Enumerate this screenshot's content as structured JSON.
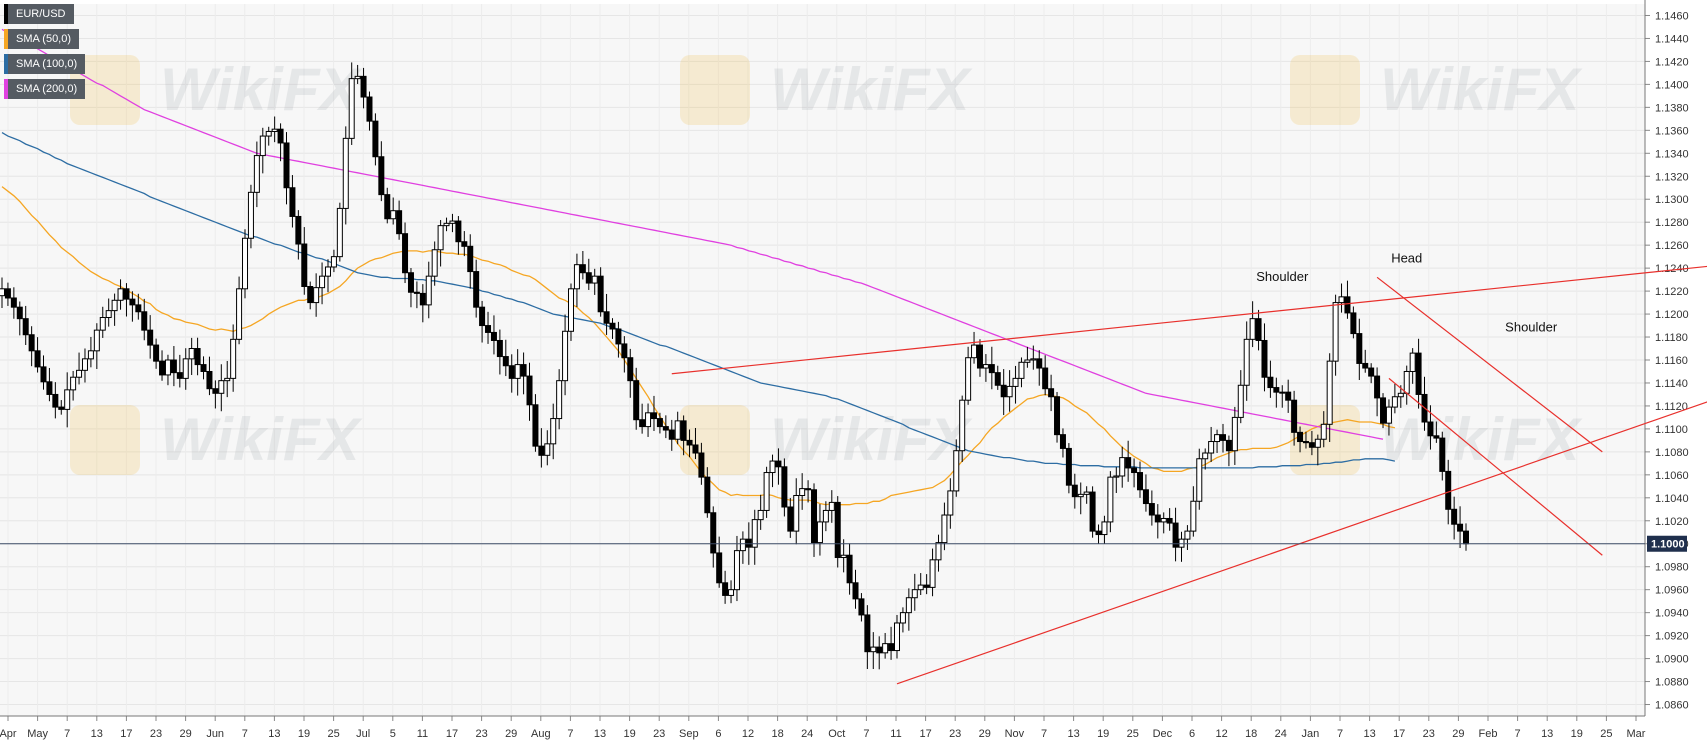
{
  "legend": [
    {
      "label": "EUR/USD",
      "color": "#000000"
    },
    {
      "label": "SMA (50,0)",
      "color": "#f5a623"
    },
    {
      "label": "SMA (100,0)",
      "color": "#2d6da3"
    },
    {
      "label": "SMA (200,0)",
      "color": "#e040e0"
    }
  ],
  "watermark": "WikiFX",
  "chart_data": {
    "type": "line",
    "instrument": "EUR/USD",
    "current_price": 1.1,
    "current_price_label": "1.1000",
    "y_axis": {
      "range": [
        1.085,
        1.147
      ],
      "ticks": [
        "1.1460",
        "1.1440",
        "1.1420",
        "1.1400",
        "1.1380",
        "1.1360",
        "1.1340",
        "1.1320",
        "1.1300",
        "1.1280",
        "1.1260",
        "1.1240",
        "1.1220",
        "1.1200",
        "1.1180",
        "1.1160",
        "1.1140",
        "1.1120",
        "1.1100",
        "1.1080",
        "1.1060",
        "1.1040",
        "1.1020",
        "1.1000",
        "1.0980",
        "1.0960",
        "1.0940",
        "1.0920",
        "1.0900",
        "1.0880",
        "1.0860"
      ]
    },
    "x_axis": {
      "ticks": [
        "Apr",
        "May",
        "7",
        "13",
        "17",
        "23",
        "29",
        "Jun",
        "7",
        "13",
        "19",
        "25",
        "Jul",
        "5",
        "11",
        "17",
        "23",
        "29",
        "Aug",
        "7",
        "13",
        "19",
        "23",
        "Sep",
        "6",
        "12",
        "18",
        "24",
        "Oct",
        "7",
        "11",
        "17",
        "23",
        "29",
        "Nov",
        "7",
        "13",
        "19",
        "25",
        "Dec",
        "6",
        "12",
        "18",
        "24",
        "Jan",
        "7",
        "13",
        "17",
        "23",
        "29",
        "Feb",
        "7",
        "13",
        "19",
        "25",
        "Mar"
      ]
    },
    "series": [
      {
        "name": "EUR/USD",
        "style": "candlestick",
        "color": "#000000",
        "close": [
          1.1222,
          1.1214,
          1.1206,
          1.1196,
          1.1182,
          1.1168,
          1.1154,
          1.1141,
          1.113,
          1.1119,
          1.1117,
          1.1134,
          1.1145,
          1.1151,
          1.1161,
          1.1168,
          1.1186,
          1.1197,
          1.1203,
          1.1212,
          1.1222,
          1.1213,
          1.1208,
          1.1202,
          1.1186,
          1.1173,
          1.1159,
          1.1147,
          1.116,
          1.1149,
          1.1144,
          1.1161,
          1.117,
          1.1156,
          1.115,
          1.1135,
          1.1131,
          1.1142,
          1.1144,
          1.1178,
          1.1222,
          1.1266,
          1.1306,
          1.1338,
          1.1355,
          1.1359,
          1.1361,
          1.1349,
          1.131,
          1.1285,
          1.1261,
          1.1224,
          1.121,
          1.1223,
          1.1233,
          1.1241,
          1.125,
          1.1292,
          1.1353,
          1.1405,
          1.1407,
          1.1389,
          1.1368,
          1.1337,
          1.1304,
          1.1283,
          1.129,
          1.127,
          1.1236,
          1.1219,
          1.1218,
          1.1208,
          1.1233,
          1.1256,
          1.1277,
          1.1279,
          1.1281,
          1.1263,
          1.1259,
          1.1237,
          1.1206,
          1.119,
          1.1184,
          1.1177,
          1.1163,
          1.1155,
          1.1144,
          1.1156,
          1.1146,
          1.1121,
          1.1085,
          1.1077,
          1.1087,
          1.1109,
          1.1142,
          1.1185,
          1.1222,
          1.1243,
          1.1236,
          1.1227,
          1.1233,
          1.1202,
          1.1192,
          1.1187,
          1.1174,
          1.1162,
          1.1142,
          1.1108,
          1.1102,
          1.1114,
          1.1109,
          1.1102,
          1.1099,
          1.1091,
          1.1107,
          1.109,
          1.1086,
          1.1079,
          1.1058,
          1.1027,
          1.0992,
          1.0966,
          1.0955,
          1.096,
          1.0994,
          1.1004,
          1.0997,
          1.1021,
          1.1029,
          1.1062,
          1.1072,
          1.1067,
          1.1032,
          1.1011,
          1.1042,
          1.1048,
          1.1047,
          1.1001,
          1.1019,
          1.1029,
          1.1036,
          1.0988,
          1.099,
          1.0966,
          1.0952,
          1.0938,
          1.0906,
          1.091,
          1.0905,
          1.0913,
          1.0907,
          1.0931,
          1.094,
          1.0953,
          1.096,
          1.0964,
          1.0962,
          1.0986,
          1.1001,
          1.1025,
          1.1046,
          1.1081,
          1.1125,
          1.1162,
          1.1173,
          1.1153,
          1.1156,
          1.1149,
          1.1138,
          1.1128,
          1.1137,
          1.1144,
          1.1158,
          1.116,
          1.1161,
          1.1153,
          1.1135,
          1.1128,
          1.1095,
          1.1083,
          1.1051,
          1.1041,
          1.1043,
          1.1045,
          1.1011,
          1.1008,
          1.1019,
          1.1058,
          1.1059,
          1.1075,
          1.1066,
          1.1062,
          1.1047,
          1.1035,
          1.1025,
          1.1019,
          1.1022,
          1.1018,
          1.0997,
          1.1004,
          1.1011,
          1.1037,
          1.1074,
          1.1079,
          1.1089,
          1.1095,
          1.109,
          1.1081,
          1.111,
          1.1138,
          1.1178,
          1.1196,
          1.1177,
          1.1145,
          1.1136,
          1.1132,
          1.1132,
          1.1125,
          1.1097,
          1.1089,
          1.1088,
          1.1084,
          1.1091,
          1.1104,
          1.1159,
          1.121,
          1.1215,
          1.1201,
          1.1183,
          1.1157,
          1.1153,
          1.1146,
          1.1127,
          1.1105,
          1.1119,
          1.1128,
          1.1131,
          1.115,
          1.1166,
          1.113,
          1.1106,
          1.1094,
          1.1092,
          1.1063,
          1.103,
          1.1017,
          1.1011,
          1.1
        ]
      },
      {
        "name": "SMA (50,0)",
        "color": "#f5a623",
        "values": [
          1.1311,
          1.1307,
          1.1303,
          1.1298,
          1.1292,
          1.1286,
          1.1281,
          1.1275,
          1.1269,
          1.1264,
          1.1258,
          1.1254,
          1.125,
          1.1245,
          1.1241,
          1.1237,
          1.1234,
          1.1231,
          1.1229,
          1.1226,
          1.1224,
          1.1221,
          1.1218,
          1.1215,
          1.1211,
          1.1209,
          1.1204,
          1.1201,
          1.1199,
          1.1196,
          1.1195,
          1.1193,
          1.1192,
          1.1191,
          1.1189,
          1.1187,
          1.1186,
          1.1187,
          1.1186,
          1.1185,
          1.1187,
          1.1188,
          1.119,
          1.1193,
          1.1196,
          1.12,
          1.1203,
          1.1206,
          1.1208,
          1.121,
          1.1212,
          1.1212,
          1.1214,
          1.1214,
          1.1216,
          1.1218,
          1.1221,
          1.1224,
          1.1229,
          1.1235,
          1.124,
          1.1243,
          1.1246,
          1.1248,
          1.1249,
          1.1251,
          1.1253,
          1.1254,
          1.1255,
          1.1255,
          1.1255,
          1.1254,
          1.1255,
          1.1255,
          1.1254,
          1.1253,
          1.1253,
          1.1252,
          1.1252,
          1.1251,
          1.1249,
          1.1247,
          1.1246,
          1.1244,
          1.1243,
          1.1241,
          1.1238,
          1.1236,
          1.1234,
          1.1233,
          1.123,
          1.1226,
          1.1222,
          1.1218,
          1.1214,
          1.1212,
          1.1209,
          1.1206,
          1.1201,
          1.1197,
          1.1192,
          1.1186,
          1.118,
          1.1174,
          1.1168,
          1.116,
          1.1152,
          1.1144,
          1.1136,
          1.1128,
          1.1119,
          1.1111,
          1.1103,
          1.1096,
          1.1087,
          1.1081,
          1.1076,
          1.1069,
          1.1062,
          1.1057,
          1.1052,
          1.1047,
          1.1045,
          1.1042,
          1.1043,
          1.1042,
          1.1042,
          1.1042,
          1.1042,
          1.1043,
          1.1042,
          1.104,
          1.1039,
          1.1038,
          1.1038,
          1.1038,
          1.1038,
          1.1037,
          1.1035,
          1.1034,
          1.1035,
          1.1034,
          1.1034,
          1.1034,
          1.1035,
          1.1035,
          1.1035,
          1.1037,
          1.1037,
          1.1039,
          1.1042,
          1.1043,
          1.1044,
          1.1045,
          1.1046,
          1.1047,
          1.1048,
          1.1049,
          1.1052,
          1.1055,
          1.106,
          1.1066,
          1.1072,
          1.1077,
          1.1083,
          1.1088,
          1.1095,
          1.1101,
          1.1105,
          1.111,
          1.1114,
          1.1118,
          1.1122,
          1.1126,
          1.1127,
          1.1129,
          1.113,
          1.1129,
          1.1128,
          1.1127,
          1.1124,
          1.112,
          1.1117,
          1.1114,
          1.1109,
          1.1104,
          1.11,
          1.1094,
          1.1089,
          1.1084,
          1.108,
          1.1076,
          1.1073,
          1.107,
          1.1066,
          1.1065,
          1.1063,
          1.1063,
          1.1063,
          1.1063,
          1.1065,
          1.1066,
          1.1067,
          1.1069,
          1.1072,
          1.1075,
          1.1077,
          1.1079,
          1.1081,
          1.1082,
          1.1082,
          1.1083,
          1.1083,
          1.1083,
          1.1083,
          1.1084,
          1.1086,
          1.1088,
          1.1091,
          1.1094,
          1.1097,
          1.11,
          1.1102,
          1.1104,
          1.1105,
          1.1106,
          1.1107,
          1.1108,
          1.1107,
          1.1106,
          1.1106,
          1.1106,
          1.1105,
          1.1104,
          1.1102,
          1.1101
        ]
      },
      {
        "name": "SMA (100,0)",
        "color": "#2d6da3",
        "values": [
          1.1358,
          1.1355,
          1.1353,
          1.1351,
          1.1348,
          1.1346,
          1.1344,
          1.1341,
          1.1339,
          1.1336,
          1.1334,
          1.1331,
          1.1329,
          1.1327,
          1.1325,
          1.1323,
          1.1321,
          1.1319,
          1.1317,
          1.1315,
          1.1313,
          1.1311,
          1.1309,
          1.1307,
          1.1305,
          1.1302,
          1.13,
          1.1298,
          1.1296,
          1.1294,
          1.1292,
          1.129,
          1.1288,
          1.1286,
          1.1284,
          1.1282,
          1.128,
          1.1278,
          1.1276,
          1.1274,
          1.1272,
          1.127,
          1.1268,
          1.1267,
          1.1265,
          1.1263,
          1.1261,
          1.126,
          1.1258,
          1.1256,
          1.1254,
          1.1253,
          1.1251,
          1.1249,
          1.1248,
          1.1246,
          1.1244,
          1.1242,
          1.124,
          1.1238,
          1.1236,
          1.1235,
          1.1234,
          1.1233,
          1.1232,
          1.1232,
          1.1231,
          1.1231,
          1.1231,
          1.1231,
          1.123,
          1.123,
          1.1229,
          1.1229,
          1.1228,
          1.1227,
          1.1226,
          1.1225,
          1.1224,
          1.1223,
          1.1222,
          1.122,
          1.1219,
          1.1217,
          1.1216,
          1.1214,
          1.1213,
          1.1211,
          1.121,
          1.1208,
          1.1206,
          1.1204,
          1.1202,
          1.12,
          1.1199,
          1.1198,
          1.1197,
          1.1196,
          1.1195,
          1.1194,
          1.1193,
          1.1192,
          1.119,
          1.1188,
          1.1187,
          1.1185,
          1.1183,
          1.1181,
          1.1179,
          1.1177,
          1.1175,
          1.1173,
          1.1172,
          1.117,
          1.1168,
          1.1166,
          1.1164,
          1.1162,
          1.116,
          1.1158,
          1.1156,
          1.1154,
          1.1152,
          1.115,
          1.1148,
          1.1146,
          1.1144,
          1.1142,
          1.114,
          1.1139,
          1.1138,
          1.1137,
          1.1136,
          1.1135,
          1.1134,
          1.1133,
          1.1132,
          1.1131,
          1.113,
          1.1129,
          1.1127,
          1.1126,
          1.1124,
          1.1122,
          1.112,
          1.1118,
          1.1116,
          1.1114,
          1.1112,
          1.111,
          1.1108,
          1.1106,
          1.1104,
          1.1101,
          1.1099,
          1.1097,
          1.1095,
          1.1093,
          1.1091,
          1.1089,
          1.1087,
          1.1085,
          1.1083,
          1.1081,
          1.108,
          1.1079,
          1.1078,
          1.1077,
          1.1076,
          1.1075,
          1.1075,
          1.1074,
          1.1073,
          1.1072,
          1.1072,
          1.1071,
          1.107,
          1.107,
          1.107,
          1.1069,
          1.1069,
          1.1069,
          1.1068,
          1.1068,
          1.1068,
          1.1068,
          1.1067,
          1.1067,
          1.1067,
          1.1067,
          1.1067,
          1.1067,
          1.1066,
          1.1066,
          1.1066,
          1.1066,
          1.1066,
          1.1066,
          1.1066,
          1.1066,
          1.1066,
          1.1066,
          1.1066,
          1.1066,
          1.1066,
          1.1066,
          1.1066,
          1.1066,
          1.1066,
          1.1066,
          1.1066,
          1.1066,
          1.1067,
          1.1067,
          1.1067,
          1.1067,
          1.1068,
          1.1068,
          1.1068,
          1.1068,
          1.1069,
          1.1069,
          1.1069,
          1.107,
          1.107,
          1.1071,
          1.1071,
          1.1072,
          1.1073,
          1.1073,
          1.1074,
          1.1074,
          1.1074,
          1.1074,
          1.1073,
          1.1072
        ]
      },
      {
        "name": "SMA (200,0)",
        "color": "#e040e0",
        "values": [
          1.1448,
          1.1445,
          1.1443,
          1.144,
          1.1437,
          1.1434,
          1.1431,
          1.1428,
          1.1425,
          1.1422,
          1.1419,
          1.1416,
          1.1413,
          1.141,
          1.1407,
          1.1404,
          1.1401,
          1.1399,
          1.1396,
          1.1393,
          1.139,
          1.1387,
          1.1384,
          1.1381,
          1.1378,
          1.1376,
          1.1374,
          1.1372,
          1.137,
          1.1368,
          1.1366,
          1.1364,
          1.1362,
          1.136,
          1.1358,
          1.1356,
          1.1354,
          1.1352,
          1.135,
          1.1348,
          1.1346,
          1.1344,
          1.1342,
          1.134,
          1.1339,
          1.1338,
          1.1337,
          1.1336,
          1.1335,
          1.1334,
          1.1333,
          1.1332,
          1.1331,
          1.133,
          1.1329,
          1.1328,
          1.1327,
          1.1326,
          1.1325,
          1.1324,
          1.1323,
          1.1322,
          1.1321,
          1.132,
          1.1319,
          1.1318,
          1.1317,
          1.1316,
          1.1315,
          1.1314,
          1.1313,
          1.1312,
          1.1311,
          1.131,
          1.1309,
          1.1308,
          1.1307,
          1.1306,
          1.1305,
          1.1304,
          1.1303,
          1.1302,
          1.1301,
          1.13,
          1.1299,
          1.1298,
          1.1297,
          1.1296,
          1.1295,
          1.1294,
          1.1293,
          1.1292,
          1.1291,
          1.129,
          1.1289,
          1.1288,
          1.1287,
          1.1286,
          1.1285,
          1.1284,
          1.1283,
          1.1282,
          1.1281,
          1.128,
          1.1279,
          1.1278,
          1.1277,
          1.1276,
          1.1275,
          1.1274,
          1.1273,
          1.1272,
          1.1271,
          1.127,
          1.1269,
          1.1268,
          1.1267,
          1.1266,
          1.1265,
          1.1264,
          1.1263,
          1.1262,
          1.1261,
          1.126,
          1.1258,
          1.1257,
          1.1255,
          1.1254,
          1.1252,
          1.1251,
          1.1249,
          1.1248,
          1.1246,
          1.1245,
          1.1243,
          1.1242,
          1.124,
          1.1239,
          1.1237,
          1.1236,
          1.1234,
          1.1233,
          1.1231,
          1.123,
          1.1228,
          1.1227,
          1.1225,
          1.1223,
          1.1221,
          1.1219,
          1.1217,
          1.1215,
          1.1213,
          1.1211,
          1.1209,
          1.1207,
          1.1205,
          1.1203,
          1.1201,
          1.1199,
          1.1197,
          1.1195,
          1.1193,
          1.1191,
          1.1189,
          1.1187,
          1.1185,
          1.1183,
          1.1181,
          1.1179,
          1.1177,
          1.1175,
          1.1173,
          1.1171,
          1.1169,
          1.1167,
          1.1165,
          1.1163,
          1.1161,
          1.1159,
          1.1157,
          1.1155,
          1.1153,
          1.1151,
          1.1149,
          1.1147,
          1.1145,
          1.1143,
          1.1141,
          1.1139,
          1.1137,
          1.1135,
          1.1133,
          1.1131,
          1.113,
          1.1129,
          1.1128,
          1.1127,
          1.1126,
          1.1125,
          1.1124,
          1.1123,
          1.1122,
          1.1121,
          1.112,
          1.1119,
          1.1118,
          1.1117,
          1.1116,
          1.1115,
          1.1114,
          1.1113,
          1.1112,
          1.1111,
          1.111,
          1.1109,
          1.1108,
          1.1107,
          1.1106,
          1.1105,
          1.1104,
          1.1103,
          1.1102,
          1.1101,
          1.11,
          1.1099,
          1.1098,
          1.1097,
          1.1096,
          1.1095,
          1.1094,
          1.1093,
          1.1092,
          1.1091
        ]
      }
    ],
    "annotations": [
      "Shoulder",
      "Head",
      "Shoulder"
    ],
    "trendline_color": "#e8302c",
    "grid": true,
    "legend_position": "top-left"
  }
}
